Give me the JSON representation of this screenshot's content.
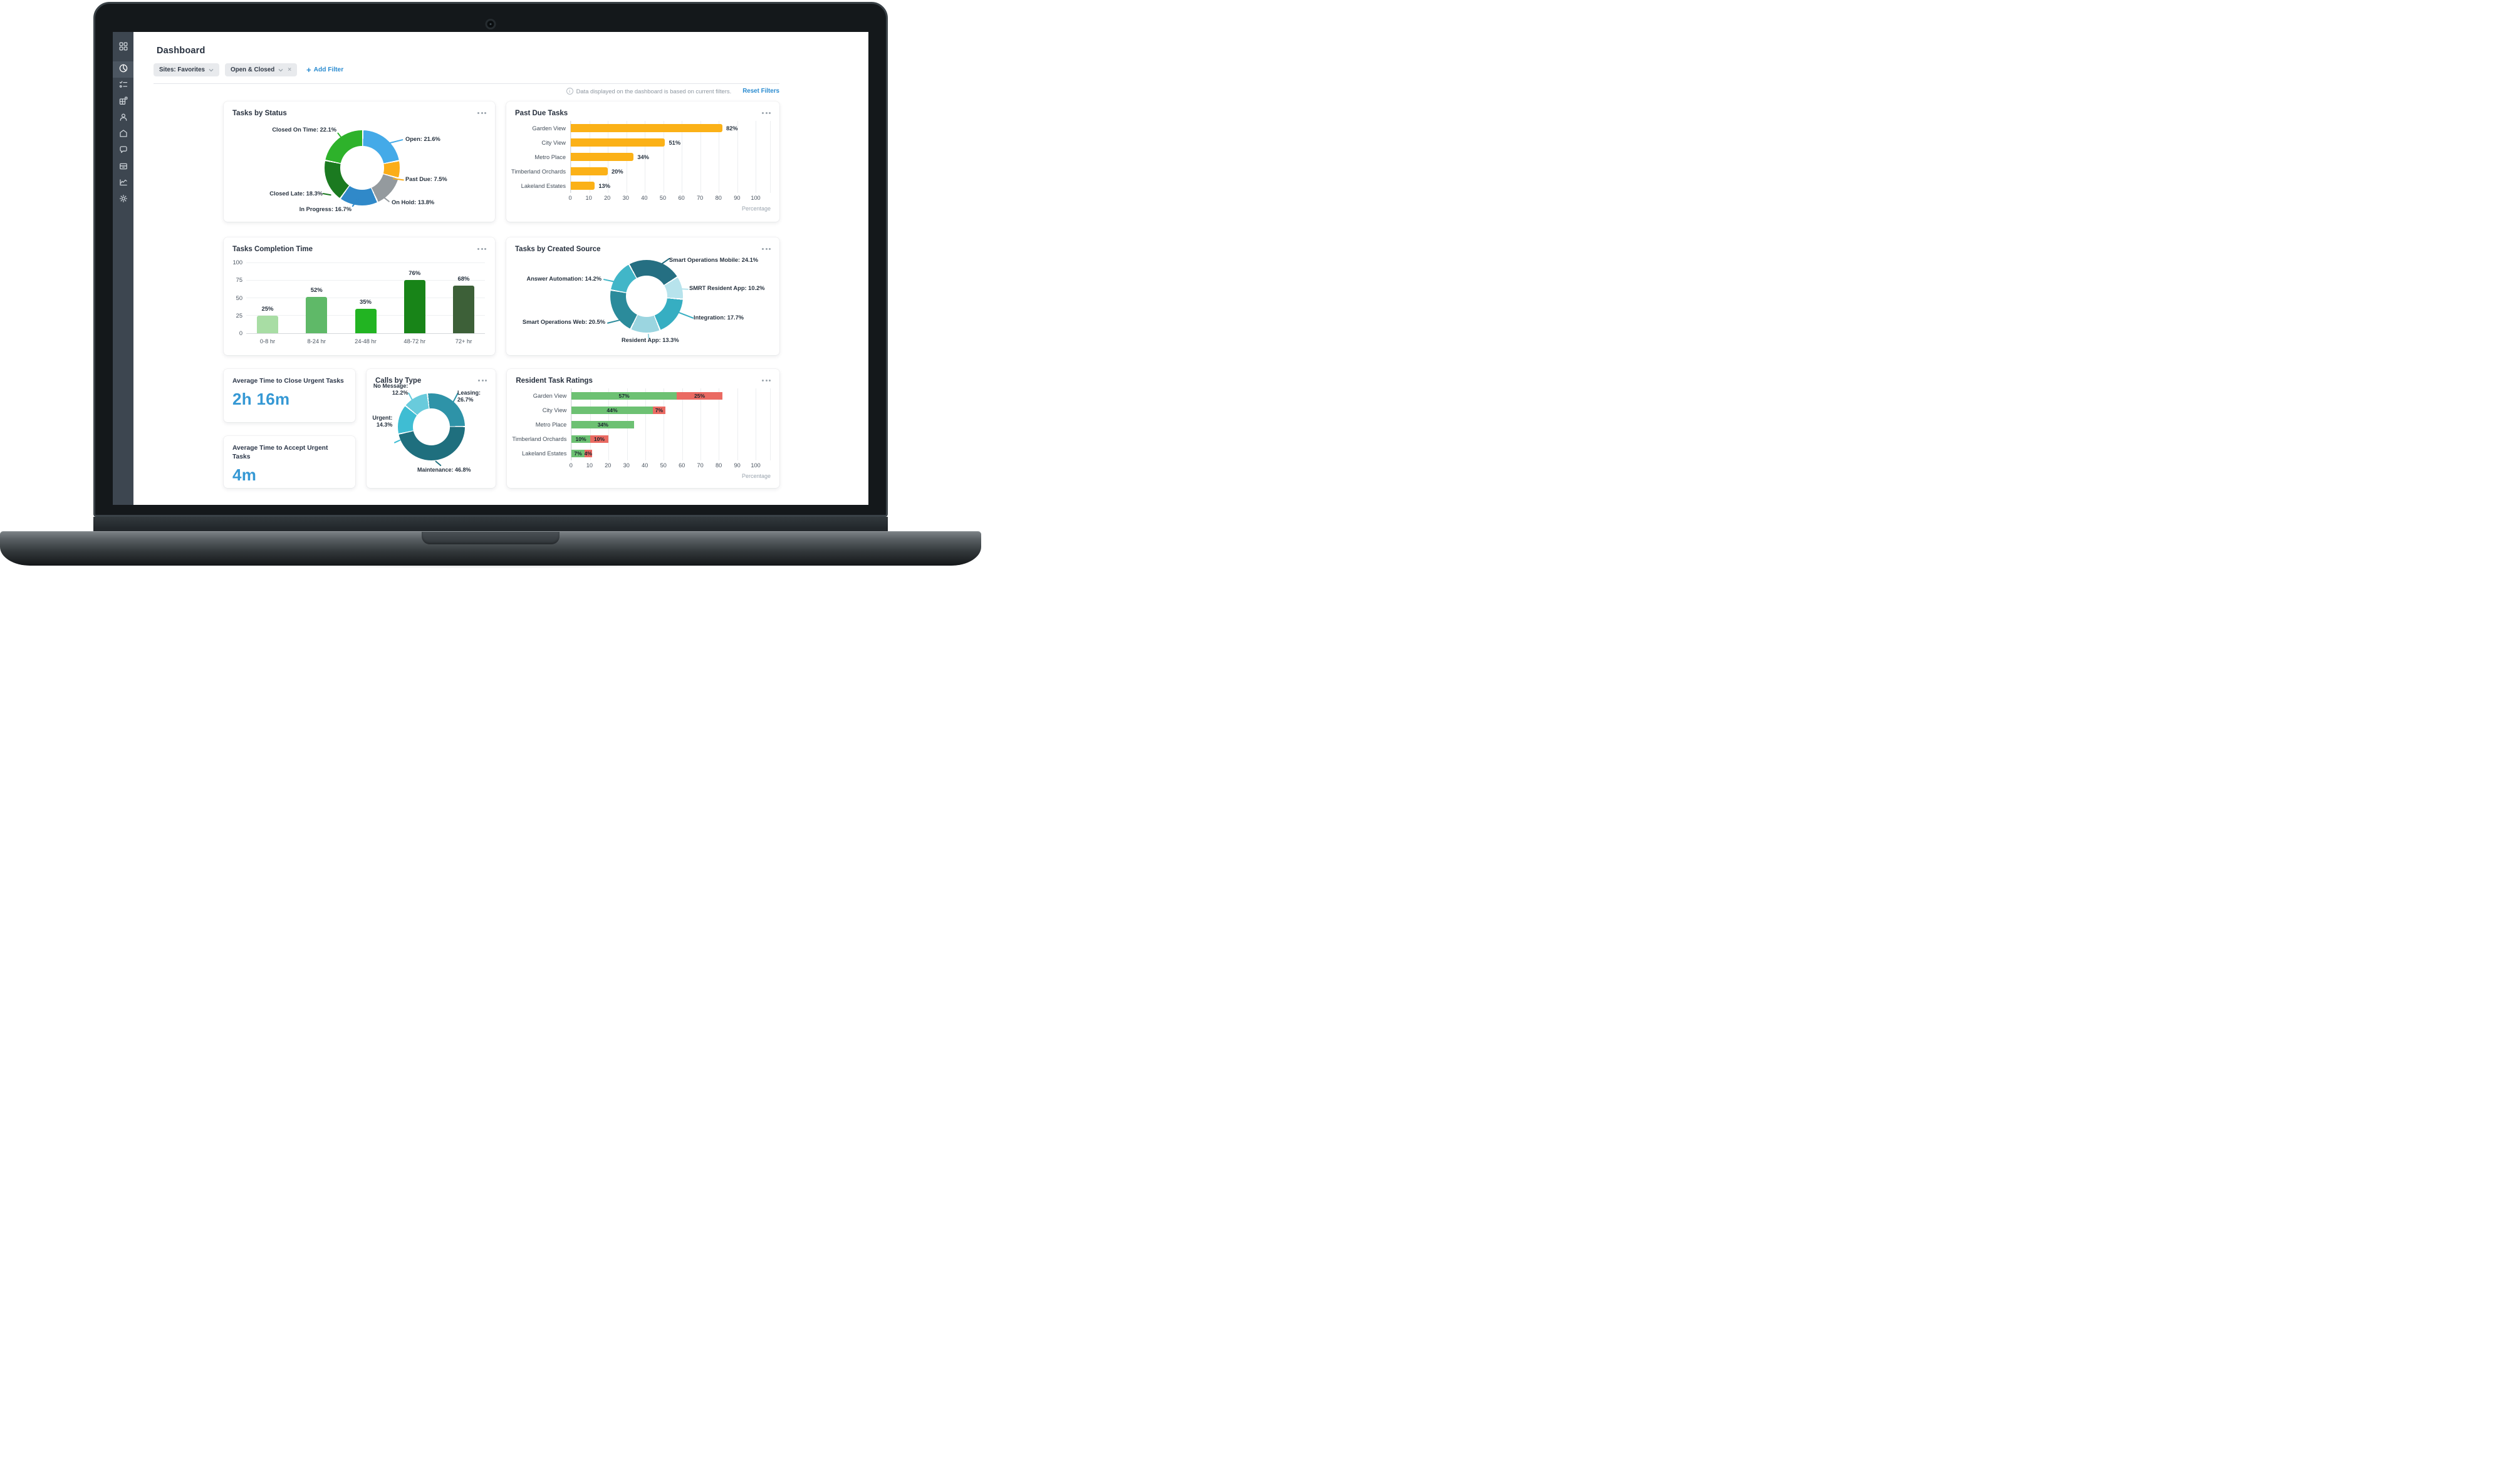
{
  "page": {
    "title": "Dashboard"
  },
  "sidebar": {
    "items": [
      {
        "icon": "grid"
      },
      {
        "icon": "pie-chart",
        "active": true
      },
      {
        "icon": "checklist"
      },
      {
        "icon": "blocks"
      },
      {
        "icon": "person"
      },
      {
        "icon": "home"
      },
      {
        "icon": "chat"
      },
      {
        "icon": "inbox"
      },
      {
        "icon": "line-chart"
      },
      {
        "icon": "gear"
      }
    ]
  },
  "filters": {
    "chips": [
      {
        "label": "Sites: Favorites",
        "close": false
      },
      {
        "label": "Open & Closed",
        "close": true
      }
    ],
    "add_filter": "Add Filter",
    "close_symbol": "×"
  },
  "notice": {
    "message": "Data displayed on the dashboard is based on current filters.",
    "action": "Reset Filters"
  },
  "stat_cards": [
    {
      "title": "Average Time to Close Urgent Tasks",
      "value": "2h 16m"
    },
    {
      "title": "Average Time to Accept Urgent Tasks",
      "value": "4m"
    }
  ],
  "colors": {
    "accent_blue": "#2a8bd0",
    "stat_value_blue": "#3598d4",
    "sidebar_bg": "#3d4650",
    "positive_green": "#6dc173",
    "negative_red": "#ea6a64",
    "past_due_amber": "#fbb117"
  },
  "chart_data": [
    {
      "id": "tasks_by_status",
      "type": "donut",
      "title": "Tasks by Status",
      "start_angle": 0,
      "legend_position": "callout-labels",
      "slices": [
        {
          "label": "Open",
          "value": 21.6,
          "display": "Open: 21.6%",
          "color": "#44aae8"
        },
        {
          "label": "Past Due",
          "value": 7.5,
          "display": "Past Due: 7.5%",
          "color": "#fbad18"
        },
        {
          "label": "On Hold",
          "value": 13.8,
          "display": "On Hold: 13.8%",
          "color": "#949a9e"
        },
        {
          "label": "In Progress",
          "value": 16.7,
          "display": "In Progress: 16.7%",
          "color": "#3089c9"
        },
        {
          "label": "Closed Late",
          "value": 18.3,
          "display": "Closed Late: 18.3%",
          "color": "#1b7a20"
        },
        {
          "label": "Closed On Time",
          "value": 22.1,
          "display": "Closed On Time: 22.1%",
          "color": "#2eb22b"
        }
      ]
    },
    {
      "id": "past_due_tasks",
      "type": "bar-h",
      "title": "Past Due Tasks",
      "categories": [
        "Garden View",
        "City View",
        "Metro Place",
        "Timberland Orchards",
        "Lakeland Estates"
      ],
      "values": [
        82,
        51,
        34,
        20,
        13
      ],
      "bar_color": "#fbb117",
      "value_suffix": "%",
      "xlim": [
        0,
        100
      ],
      "xticks": [
        0,
        10,
        20,
        30,
        40,
        50,
        60,
        70,
        80,
        90,
        100
      ],
      "xlabel": "Percentage",
      "grid": true
    },
    {
      "id": "tasks_completion_time",
      "type": "bar-v",
      "title": "Tasks Completion Time",
      "categories": [
        "0-8 hr",
        "8-24 hr",
        "24-48 hr",
        "48-72 hr",
        "72+ hr"
      ],
      "values": [
        25,
        52,
        35,
        76,
        68
      ],
      "colors": [
        "#a8dda4",
        "#5fb968",
        "#22b422",
        "#188418",
        "#3d6038"
      ],
      "value_suffix": "%",
      "ylim": [
        0,
        100
      ],
      "yticks": [
        0,
        25,
        50,
        75,
        100
      ],
      "grid": true
    },
    {
      "id": "tasks_by_created_source",
      "type": "donut",
      "title": "Tasks by Created Source",
      "start_angle": -30,
      "legend_position": "callout-labels",
      "slices": [
        {
          "label": "Smart Operations Mobile",
          "value": 24.1,
          "display": "Smart Operations Mobile: 24.1%",
          "color": "#256f82"
        },
        {
          "label": "SMRT Resident App",
          "value": 10.2,
          "display": "SMRT Resident App: 10.2%",
          "color": "#b7e3ec"
        },
        {
          "label": "Integration",
          "value": 17.7,
          "display": "Integration: 17.7%",
          "color": "#36aec2"
        },
        {
          "label": "Resident App",
          "value": 13.3,
          "display": "Resident App: 13.3%",
          "color": "#9bd5e0"
        },
        {
          "label": "Smart Operations Web",
          "value": 20.5,
          "display": "Smart Operations Web: 20.5%",
          "color": "#2b8b9b"
        },
        {
          "label": "Answer Automation",
          "value": 14.2,
          "display": "Answer Automation: 14.2%",
          "color": "#41b6c8"
        }
      ]
    },
    {
      "id": "calls_by_type",
      "type": "donut",
      "title": "Calls by Type",
      "start_angle": -8,
      "legend_position": "callout-labels",
      "slices": [
        {
          "label": "Leasing",
          "value": 26.7,
          "display": "Leasing: 26.7%",
          "color": "#2e93a8"
        },
        {
          "label": "Maintenance",
          "value": 46.8,
          "display": "Maintenance: 46.8%",
          "color": "#1f6f7e"
        },
        {
          "label": "Urgent",
          "value": 14.3,
          "display": "Urgent: 14.3%",
          "color": "#3fbdd3"
        },
        {
          "label": "No Message",
          "value": 12.2,
          "display": "No Message: 12.2%",
          "color": "#69cbdc"
        }
      ]
    },
    {
      "id": "resident_task_ratings",
      "type": "stacked-bar-h",
      "title": "Resident Task Ratings",
      "categories": [
        "Garden View",
        "City View",
        "Metro Place",
        "Timberland Orchards",
        "Lakeland Estates"
      ],
      "series": [
        {
          "name": "positive",
          "color": "#6dc173",
          "values": [
            57,
            44,
            34,
            10,
            7
          ]
        },
        {
          "name": "negative",
          "color": "#ea6a62",
          "values": [
            25,
            7,
            0,
            10,
            4
          ]
        }
      ],
      "value_suffix": "%",
      "xlim": [
        0,
        100
      ],
      "xticks": [
        0,
        10,
        20,
        30,
        40,
        50,
        60,
        70,
        80,
        90,
        100
      ],
      "xlabel": "Percentage",
      "grid": true
    }
  ]
}
